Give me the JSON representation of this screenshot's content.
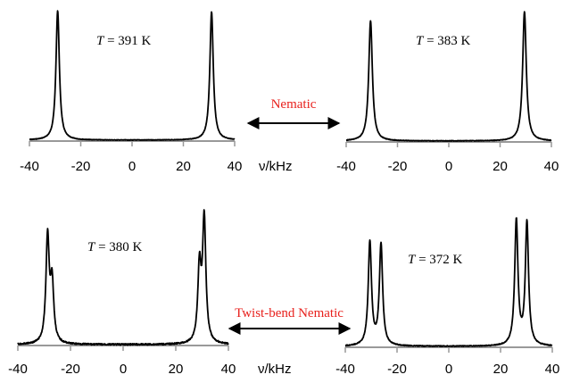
{
  "colors": {
    "spectrum": "#000000",
    "axis": "#999999",
    "phase_text": "#e8211d",
    "arrow": "#000000"
  },
  "xlabel_top": "ν/kHz",
  "xlabel_bottom": "ν/kHz",
  "phase_top": "Nematic",
  "phase_bottom": "Twist-bend Nematic",
  "chart_data": [
    {
      "type": "line",
      "title": "",
      "temp_symbol": "T",
      "temp_text": " = 391 K",
      "xlabel": "ν/kHz",
      "xlim": [
        -40,
        40
      ],
      "xticks": [
        -40,
        -20,
        0,
        20,
        40
      ],
      "peaks": [
        {
          "x": -29,
          "height": 1.0,
          "width": 0.8
        },
        {
          "x": 31,
          "height": 0.99,
          "width": 0.8
        }
      ]
    },
    {
      "type": "line",
      "title": "",
      "temp_symbol": "T",
      "temp_text": " = 383 K",
      "xlabel": "ν/kHz",
      "xlim": [
        -40,
        40
      ],
      "xticks": [
        -40,
        -20,
        0,
        20,
        40
      ],
      "peaks": [
        {
          "x": -30.5,
          "height": 0.93,
          "width": 0.85
        },
        {
          "x": 29.5,
          "height": 1.0,
          "width": 0.85
        }
      ]
    },
    {
      "type": "line",
      "title": "",
      "temp_symbol": "T",
      "temp_text": " = 380 K",
      "xlabel": "ν/kHz",
      "xlim": [
        -40,
        40
      ],
      "xticks": [
        -40,
        -20,
        0,
        20,
        40
      ],
      "peaks": [
        {
          "x": -28.7,
          "height": 0.83,
          "width": 0.75
        },
        {
          "x": -27.0,
          "height": 0.46,
          "width": 0.75
        },
        {
          "x": 29.0,
          "height": 0.58,
          "width": 0.75
        },
        {
          "x": 30.8,
          "height": 0.97,
          "width": 0.75
        }
      ]
    },
    {
      "type": "line",
      "title": "",
      "temp_symbol": "T",
      "temp_text": " = 372 K",
      "xlabel": "ν/kHz",
      "xlim": [
        -40,
        40
      ],
      "xticks": [
        -40,
        -20,
        0,
        20,
        40
      ],
      "peaks": [
        {
          "x": -30.5,
          "height": 0.83,
          "width": 0.75
        },
        {
          "x": -26.2,
          "height": 0.81,
          "width": 0.75
        },
        {
          "x": 26.1,
          "height": 1.0,
          "width": 0.75
        },
        {
          "x": 30.2,
          "height": 0.98,
          "width": 0.75
        }
      ]
    }
  ]
}
